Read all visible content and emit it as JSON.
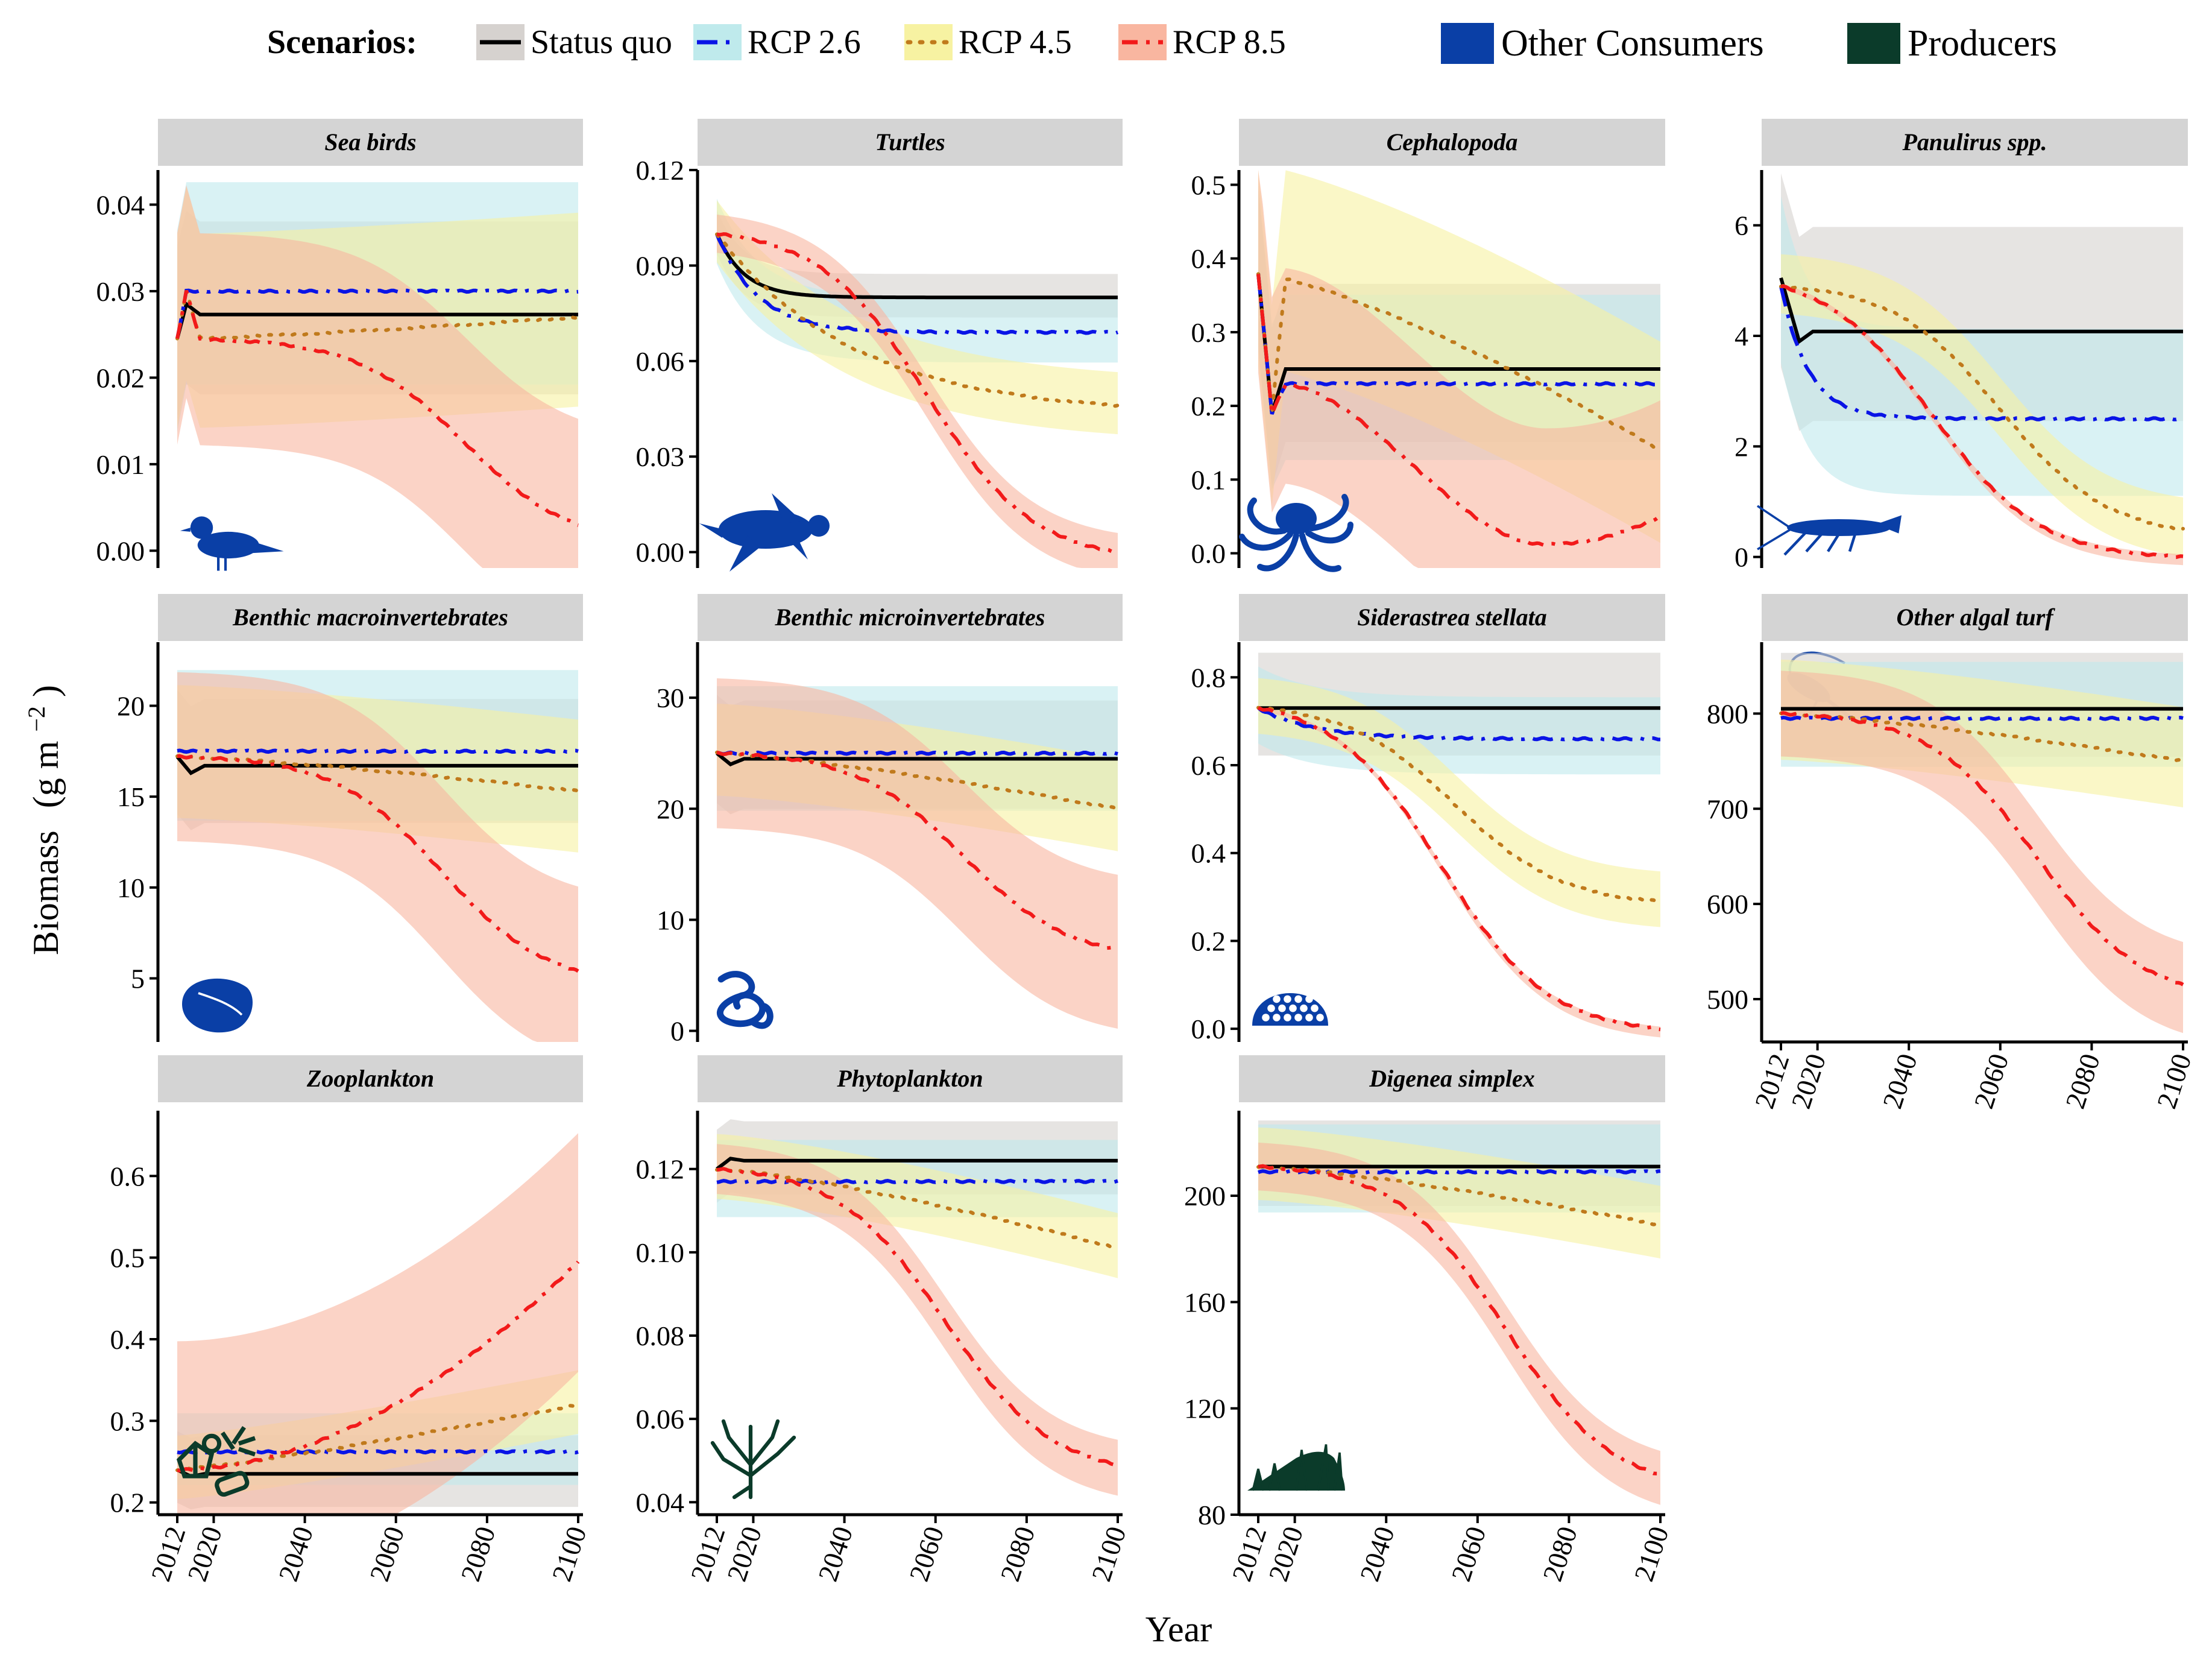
{
  "legend": {
    "scenarios_label": "Scenarios:",
    "items": [
      {
        "key": "sq",
        "label": "Status quo",
        "line_color": "#000000",
        "band_color": "#d6d2cf",
        "dash": "solid"
      },
      {
        "key": "r26",
        "label": "RCP 2.6",
        "line_color": "#0a14e6",
        "band_color": "#bfeaec",
        "dash": "dashed"
      },
      {
        "key": "r45",
        "label": "RCP 4.5",
        "line_color": "#c07a1c",
        "band_color": "#f7f2a2",
        "dash": "dotted"
      },
      {
        "key": "r85",
        "label": "RCP 8.5",
        "line_color": "#f21a1a",
        "band_color": "#f9b6a0",
        "dash": "dashdot"
      }
    ],
    "groups": [
      {
        "label": "Other Consumers",
        "color": "#0a3fa6"
      },
      {
        "label": "Producers",
        "color": "#0b3b2a"
      }
    ]
  },
  "axes": {
    "ylabel": "Biomass",
    "ylabel_unit": "(g m",
    "ylabel_exp": "−2",
    "ylabel_close": ")",
    "xlabel": "Year",
    "x_ticks": [
      2012,
      2020,
      2040,
      2060,
      2080,
      2100
    ],
    "x_tick_labels": [
      "2012",
      "2020",
      "2040",
      "2060",
      "2080",
      "2100"
    ],
    "xlim": [
      2012,
      2100
    ]
  },
  "chart_data": [
    {
      "type": "line",
      "title": "Sea birds",
      "group": "Other Consumers",
      "icon": "bird-icon",
      "ylim": [
        -0.002,
        0.044
      ],
      "yticks": [
        0.0,
        0.01,
        0.02,
        0.03,
        0.04
      ],
      "tick_labels": [
        "0.00",
        "0.01",
        "0.02",
        "0.03",
        "0.04"
      ],
      "series": [
        {
          "key": "sq",
          "start": 0.0245,
          "peak": [
            2014,
            0.0285
          ],
          "end": 0.0273,
          "decline": 0,
          "lo": 0.0175,
          "hi": 0.038
        },
        {
          "key": "r26",
          "start": 0.0245,
          "peak": [
            2014,
            0.03
          ],
          "end": 0.03,
          "decline": 0,
          "lo": 0.018,
          "hi": 0.042
        },
        {
          "key": "r45",
          "start": 0.0245,
          "peak": [
            2014,
            0.03
          ],
          "end": 0.027,
          "decline": 0.1,
          "lo": 0.0175,
          "hi": 0.0405
        },
        {
          "key": "r85",
          "start": 0.0245,
          "peak": [
            2014,
            0.03
          ],
          "end": 0.003,
          "decline": 1,
          "mid": 2075,
          "lo": 0.0165,
          "hi": 0.041
        }
      ]
    },
    {
      "type": "line",
      "title": "Turtles",
      "group": "Other Consumers",
      "icon": "turtle-icon",
      "ylim": [
        -0.005,
        0.12
      ],
      "yticks": [
        0.0,
        0.03,
        0.06,
        0.09,
        0.12
      ],
      "tick_labels": [
        "0.00",
        "0.03",
        "0.06",
        "0.09",
        "0.12"
      ],
      "series": [
        {
          "key": "sq",
          "start": 0.1,
          "end": 0.08,
          "decay": 6,
          "lo": 0.08,
          "hi": 0.094
        },
        {
          "key": "r26",
          "start": 0.1,
          "end": 0.069,
          "decay": 9,
          "lo": 0.059,
          "hi": 0.08
        },
        {
          "key": "r45",
          "start": 0.1,
          "end": 0.043,
          "decay": 30,
          "lo": 0.033,
          "hi": 0.053
        },
        {
          "key": "r85",
          "start": 0.1,
          "end": 0.0,
          "decline": 1,
          "mid": 2058,
          "lo": 0.0,
          "hi": 0.012
        }
      ]
    },
    {
      "type": "line",
      "title": "Cephalopoda",
      "group": "Other Consumers",
      "icon": "octopus-icon",
      "ylim": [
        -0.02,
        0.52
      ],
      "yticks": [
        0.0,
        0.1,
        0.2,
        0.3,
        0.4,
        0.5
      ],
      "tick_labels": [
        "0.0",
        "0.1",
        "0.2",
        "0.3",
        "0.4",
        "0.5"
      ],
      "series": [
        {
          "key": "sq",
          "start": 0.38,
          "dip": [
            2015,
            0.19
          ],
          "end": 0.25,
          "lo": 0.14,
          "hi": 0.36
        },
        {
          "key": "r26",
          "start": 0.38,
          "dip": [
            2015,
            0.19
          ],
          "end": 0.23,
          "lo": 0.13,
          "hi": 0.36
        },
        {
          "key": "r45",
          "start": 0.38,
          "dip": [
            2015,
            0.19
          ],
          "end": 0.14,
          "decline": 0.45,
          "lo": 0.05,
          "hi": 0.33
        },
        {
          "key": "r85",
          "start": 0.38,
          "dip": [
            2015,
            0.19
          ],
          "end": 0.05,
          "valley": [
            2075,
            0.012
          ],
          "lo": 0.0,
          "hi": 0.3
        }
      ]
    },
    {
      "type": "line",
      "title": "Panulirus spp.",
      "group": "Other Consumers",
      "icon": "lobster-icon",
      "ylim": [
        -0.2,
        7.0
      ],
      "yticks": [
        0,
        2,
        4,
        6
      ],
      "tick_labels": [
        "0",
        "2",
        "4",
        "6"
      ],
      "series": [
        {
          "key": "sq",
          "start": 5.05,
          "dip": [
            2016,
            3.9
          ],
          "end": 4.08,
          "lo": 2.3,
          "hi": 5.9
        },
        {
          "key": "r26",
          "start": 4.9,
          "end": 2.5,
          "decay": 6,
          "lo": 0.9,
          "hi": 4.0
        },
        {
          "key": "r45",
          "start": 4.9,
          "end": 0.5,
          "decline": 1,
          "mid": 2060,
          "lo": 0.0,
          "hi": 1.1
        },
        {
          "key": "r85",
          "start": 4.9,
          "end": 0.0,
          "decline": 1,
          "mid": 2045,
          "lo": 0.0,
          "hi": 0.1
        }
      ]
    },
    {
      "type": "line",
      "title": "Benthic macroinvertebrates",
      "group": "Other Consumers",
      "icon": "shell-icon",
      "ylim": [
        1.5,
        23.5
      ],
      "yticks": [
        5,
        10,
        15,
        20
      ],
      "tick_labels": [
        "5",
        "10",
        "15",
        "20"
      ],
      "series": [
        {
          "key": "sq",
          "start": 17.2,
          "dip": [
            2015,
            16.3
          ],
          "end": 16.7,
          "lo": 13.0,
          "hi": 20.0
        },
        {
          "key": "r26",
          "start": 17.2,
          "end": 17.5,
          "lo": 13.5,
          "hi": 22.0
        },
        {
          "key": "r45",
          "start": 17.2,
          "end": 15.3,
          "decline": 0.25,
          "lo": 11.5,
          "hi": 19.0
        },
        {
          "key": "r85",
          "start": 17.2,
          "end": 5.4,
          "decline": 1,
          "mid": 2070,
          "lo": 1.2,
          "hi": 10.5
        }
      ]
    },
    {
      "type": "line",
      "title": "Benthic microinvertebrates",
      "group": "Other Consumers",
      "icon": "worm-icon",
      "ylim": [
        -1.0,
        35.0
      ],
      "yticks": [
        0,
        10,
        20,
        30
      ],
      "tick_labels": [
        "0",
        "10",
        "20",
        "30"
      ],
      "series": [
        {
          "key": "sq",
          "start": 25.0,
          "dip": [
            2015,
            24.0
          ],
          "end": 24.5,
          "lo": 19.5,
          "hi": 29.5
        },
        {
          "key": "r26",
          "start": 25.0,
          "end": 25.0,
          "lo": 19.5,
          "hi": 31.0
        },
        {
          "key": "r45",
          "start": 25.0,
          "end": 20.0,
          "decline": 0.4,
          "lo": 16.0,
          "hi": 24.5
        },
        {
          "key": "r85",
          "start": 25.0,
          "end": 7.3,
          "decline": 1,
          "mid": 2066,
          "lo": 1.0,
          "hi": 14.5
        }
      ]
    },
    {
      "type": "line",
      "title": "Siderastrea stellata",
      "group": "Other Consumers",
      "icon": "coral-icon",
      "ylim": [
        -0.03,
        0.88
      ],
      "yticks": [
        0.0,
        0.2,
        0.4,
        0.6,
        0.8
      ],
      "tick_labels": [
        "0.0",
        "0.2",
        "0.4",
        "0.6",
        "0.8"
      ],
      "series": [
        {
          "key": "sq",
          "start": 0.73,
          "end": 0.73,
          "lo": 0.6,
          "hi": 0.84
        },
        {
          "key": "r26",
          "start": 0.73,
          "end": 0.66,
          "decay": 12,
          "lo": 0.57,
          "hi": 0.75
        },
        {
          "key": "r45",
          "start": 0.73,
          "end": 0.29,
          "decline": 1,
          "mid": 2055,
          "lo": 0.23,
          "hi": 0.36
        },
        {
          "key": "r85",
          "start": 0.73,
          "end": 0.0,
          "decline": 1,
          "mid": 2052,
          "lo": 0.0,
          "hi": 0.01
        }
      ]
    },
    {
      "type": "line",
      "title": "Zooplankton",
      "group": "Other Consumers",
      "icon": "copepod-icon",
      "ylim": [
        0.185,
        0.68
      ],
      "yticks": [
        0.2,
        0.3,
        0.4,
        0.5,
        0.6
      ],
      "tick_labels": [
        "0.2",
        "0.3",
        "0.4",
        "0.5",
        "0.6"
      ],
      "series": [
        {
          "key": "sq",
          "start": 0.24,
          "dip": [
            2015,
            0.232
          ],
          "end": 0.235,
          "lo": 0.19,
          "hi": 0.28
        },
        {
          "key": "r26",
          "start": 0.24,
          "end": 0.262,
          "lo": 0.2,
          "hi": 0.29
        },
        {
          "key": "r45",
          "start": 0.24,
          "end": 0.32,
          "rise": 1,
          "lo": 0.29,
          "hi": 0.37
        },
        {
          "key": "r85",
          "start": 0.24,
          "end": 0.495,
          "rise": 2,
          "lo": 0.37,
          "hi": 0.67
        }
      ]
    },
    {
      "type": "line",
      "title": "Phytoplankton",
      "group": "Producers",
      "icon": "phytoplankton-icon",
      "ylim": [
        0.037,
        0.134
      ],
      "yticks": [
        0.04,
        0.06,
        0.08,
        0.1,
        0.12
      ],
      "tick_labels": [
        "0.04",
        "0.06",
        "0.08",
        "0.10",
        "0.12"
      ],
      "series": [
        {
          "key": "sq",
          "start": 0.12,
          "peak": [
            2015,
            0.1225
          ],
          "end": 0.122,
          "lo": 0.113,
          "hi": 0.131
        },
        {
          "key": "r26",
          "start": 0.12,
          "end": 0.117,
          "lo": 0.108,
          "hi": 0.127
        },
        {
          "key": "r45",
          "start": 0.12,
          "end": 0.101,
          "decline": 0.6,
          "lo": 0.093,
          "hi": 0.109
        },
        {
          "key": "r85",
          "start": 0.12,
          "end": 0.049,
          "decline": 1,
          "mid": 2062,
          "lo": 0.043,
          "hi": 0.055
        }
      ]
    },
    {
      "type": "line",
      "title": "Digenea simplex",
      "group": "Producers",
      "icon": "seaweed-icon",
      "ylim": [
        80,
        232
      ],
      "yticks": [
        80,
        120,
        160,
        200
      ],
      "tick_labels": [
        "80",
        "120",
        "160",
        "200"
      ],
      "series": [
        {
          "key": "sq",
          "start": 211,
          "end": 211,
          "lo": 195,
          "hi": 228
        },
        {
          "key": "r26",
          "start": 211,
          "end": 209,
          "lo": 192,
          "hi": 226
        },
        {
          "key": "r45",
          "start": 211,
          "end": 189,
          "decline": 0.5,
          "lo": 175,
          "hi": 203
        },
        {
          "key": "r85",
          "start": 211,
          "end": 95,
          "decline": 1,
          "mid": 2066,
          "lo": 86,
          "hi": 104
        }
      ]
    },
    {
      "type": "line",
      "title": "Other algal turf",
      "group": "Producers",
      "icon": "algal-turf-icon",
      "ylim": [
        455,
        875
      ],
      "yticks": [
        500,
        600,
        700,
        800
      ],
      "tick_labels": [
        "500",
        "600",
        "700",
        "800"
      ],
      "series": [
        {
          "key": "sq",
          "start": 805,
          "end": 805,
          "lo": 750,
          "hi": 862
        },
        {
          "key": "r26",
          "start": 800,
          "end": 795,
          "lo": 745,
          "hi": 858
        },
        {
          "key": "r45",
          "start": 800,
          "end": 750,
          "decline": 0.5,
          "lo": 697,
          "hi": 805
        },
        {
          "key": "r85",
          "start": 800,
          "end": 515,
          "decline": 1,
          "mid": 2068,
          "lo": 470,
          "hi": 560
        }
      ]
    }
  ]
}
